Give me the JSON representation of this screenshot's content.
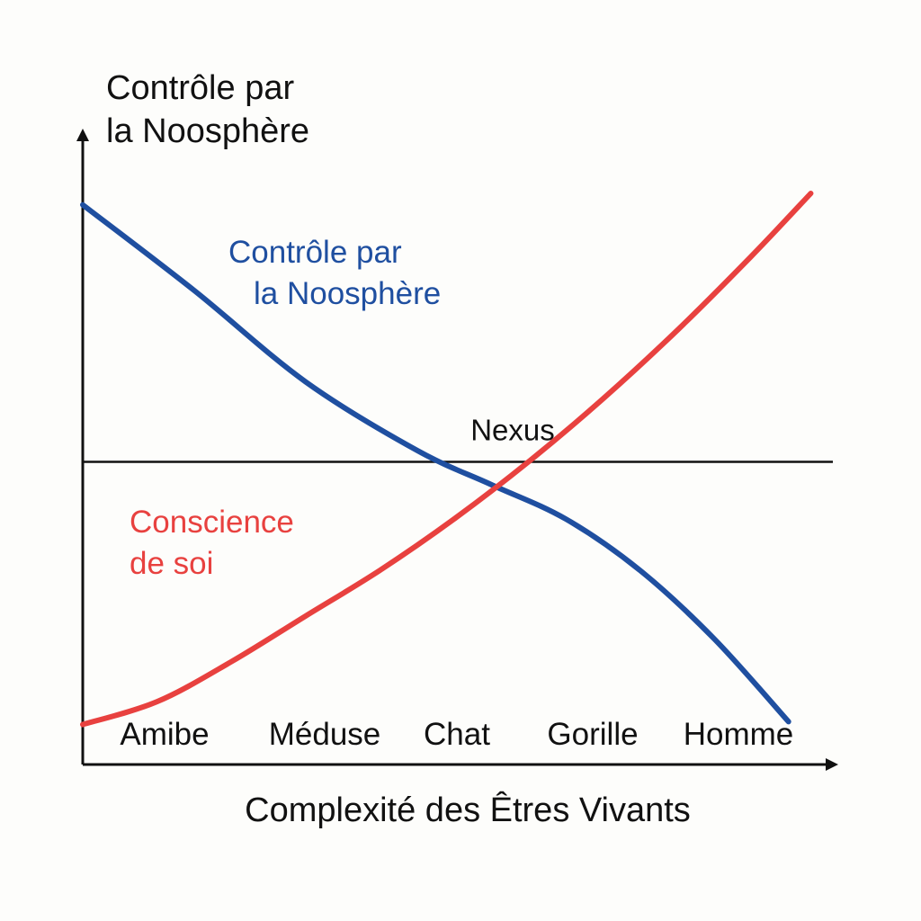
{
  "chart_data": {
    "type": "line",
    "title": "",
    "ylabel": [
      "Contrôle par",
      "la Noosphère"
    ],
    "xlabel": "Complexité des Êtres Vivants",
    "categories": [
      "Amibe",
      "Méduse",
      "Chat",
      "Gorille",
      "Homme"
    ],
    "x_range": [
      0,
      10
    ],
    "y_range": [
      0,
      10
    ],
    "series": [
      {
        "name": [
          "Contrôle par",
          "la Noosphère"
        ],
        "color": "#1f4fa0",
        "x": [
          0,
          1.5,
          3,
          4.5,
          5.5,
          6.5,
          7.5,
          8.5,
          9.5
        ],
        "y": [
          9.8,
          8.3,
          6.7,
          5.5,
          4.9,
          4.3,
          3.4,
          2.2,
          0.75
        ]
      },
      {
        "name": [
          "Conscience",
          "de soi"
        ],
        "color": "#e8413f",
        "x": [
          0,
          1,
          2,
          3,
          4,
          5,
          6,
          7,
          8,
          9,
          9.8
        ],
        "y": [
          0.7,
          1.1,
          1.8,
          2.6,
          3.4,
          4.3,
          5.3,
          6.4,
          7.6,
          8.9,
          10.0
        ]
      }
    ],
    "reference_line": {
      "y": 5.3,
      "label": "Nexus",
      "color": "#111111"
    },
    "grid": false,
    "legend": "none"
  }
}
